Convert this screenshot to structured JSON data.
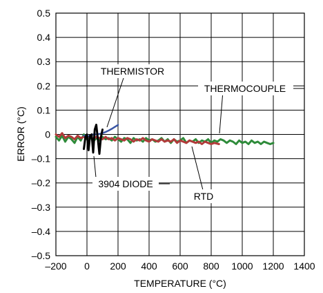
{
  "chart_data": {
    "type": "line",
    "title": "",
    "xlabel": "TEMPERATURE (°C)",
    "ylabel": "ERROR (°C)",
    "xlim": [
      -200,
      1400
    ],
    "ylim": [
      -0.5,
      0.5
    ],
    "grid": true,
    "legend": "none",
    "x_tick_labels": [
      "–200",
      "0",
      "200",
      "400",
      "600",
      "800",
      "1000",
      "1200",
      "1400"
    ],
    "y_tick_labels": [
      "–0.5",
      "–0.4",
      "–0.3",
      "–0.2",
      "–0.1",
      "0",
      "0.1",
      "0.2",
      "0.3",
      "0.4",
      "0.5"
    ],
    "series": [
      {
        "name": "THERMOCOUPLE",
        "color": "#2e8b3a",
        "x": [
          -200,
          -180,
          -160,
          -140,
          -120,
          -100,
          -80,
          -60,
          -40,
          -20,
          0,
          20,
          40,
          60,
          80,
          100,
          120,
          140,
          160,
          180,
          200,
          220,
          240,
          260,
          280,
          300,
          320,
          340,
          360,
          380,
          400,
          420,
          440,
          460,
          480,
          500,
          520,
          540,
          560,
          580,
          600,
          620,
          640,
          660,
          680,
          700,
          720,
          740,
          760,
          780,
          800,
          820,
          840,
          860,
          880,
          900,
          920,
          940,
          960,
          980,
          1000,
          1020,
          1040,
          1060,
          1080,
          1100,
          1120,
          1140,
          1160,
          1180,
          1200
        ],
        "y": [
          -0.01,
          -0.025,
          -0.005,
          -0.03,
          -0.01,
          -0.02,
          -0.035,
          -0.01,
          -0.025,
          0.0,
          -0.02,
          -0.005,
          -0.03,
          -0.015,
          -0.025,
          -0.01,
          -0.02,
          -0.015,
          -0.025,
          -0.01,
          -0.02,
          -0.03,
          -0.015,
          -0.02,
          -0.035,
          -0.015,
          -0.025,
          -0.02,
          -0.03,
          -0.015,
          -0.025,
          -0.02,
          -0.03,
          -0.025,
          -0.015,
          -0.03,
          -0.02,
          -0.035,
          -0.02,
          -0.03,
          -0.025,
          -0.015,
          -0.035,
          -0.025,
          -0.03,
          -0.02,
          -0.035,
          -0.025,
          -0.03,
          -0.02,
          -0.035,
          -0.025,
          -0.03,
          -0.02,
          -0.025,
          -0.035,
          -0.025,
          -0.03,
          -0.04,
          -0.025,
          -0.035,
          -0.03,
          -0.04,
          -0.025,
          -0.035,
          -0.03,
          -0.04,
          -0.03,
          -0.035,
          -0.04,
          -0.035
        ]
      },
      {
        "name": "RTD",
        "color": "#b23a3a",
        "x": [
          -200,
          -180,
          -160,
          -140,
          -120,
          -100,
          -80,
          -60,
          -40,
          -20,
          0,
          20,
          40,
          60,
          80,
          100,
          120,
          140,
          160,
          180,
          200,
          220,
          240,
          260,
          280,
          300,
          320,
          340,
          360,
          380,
          400,
          420,
          440,
          460,
          480,
          500,
          520,
          540,
          560,
          580,
          600,
          620,
          640,
          660,
          680,
          700,
          720,
          740,
          760,
          780,
          800,
          820,
          850
        ],
        "y": [
          0.0,
          -0.01,
          0.005,
          -0.015,
          -0.005,
          -0.01,
          -0.02,
          -0.005,
          -0.015,
          -0.01,
          -0.015,
          -0.005,
          -0.02,
          -0.01,
          -0.015,
          -0.02,
          -0.01,
          -0.02,
          -0.015,
          -0.025,
          -0.015,
          -0.02,
          -0.025,
          -0.015,
          -0.02,
          -0.03,
          -0.02,
          -0.025,
          -0.015,
          -0.025,
          -0.03,
          -0.02,
          -0.025,
          -0.03,
          -0.02,
          -0.03,
          -0.025,
          -0.03,
          -0.02,
          -0.035,
          -0.025,
          -0.03,
          -0.035,
          -0.025,
          -0.03,
          -0.035,
          -0.03,
          -0.04,
          -0.03,
          -0.035,
          -0.04,
          -0.035,
          -0.04
        ]
      },
      {
        "name": "THERMISTOR",
        "color": "#3a56a5",
        "x": [
          -20,
          0,
          20,
          40,
          60,
          80,
          100,
          120,
          140,
          160,
          180,
          200
        ],
        "y": [
          -0.005,
          -0.01,
          -0.005,
          0.0,
          0.0,
          0.002,
          0.005,
          0.01,
          0.016,
          0.023,
          0.031,
          0.039
        ]
      },
      {
        "name": "3904 DIODE",
        "color": "#000000",
        "x": [
          -20,
          -10,
          0,
          10,
          20,
          30,
          40,
          50,
          60,
          70,
          80,
          90,
          100
        ],
        "y": [
          -0.06,
          -0.01,
          0.0,
          -0.065,
          -0.005,
          0.0,
          -0.075,
          0.02,
          0.04,
          -0.02,
          -0.08,
          -0.01,
          0.02
        ]
      }
    ],
    "annotations": [
      {
        "name": "thermistor-label",
        "text": "THERMISTOR",
        "series": "THERMISTOR"
      },
      {
        "name": "thermocouple-label",
        "text": "THERMOCOUPLE",
        "series": "THERMOCOUPLE"
      },
      {
        "name": "diode-label",
        "text": "3904 DIODE",
        "series": "3904 DIODE"
      },
      {
        "name": "rtd-label",
        "text": "RTD",
        "series": "RTD"
      }
    ]
  }
}
